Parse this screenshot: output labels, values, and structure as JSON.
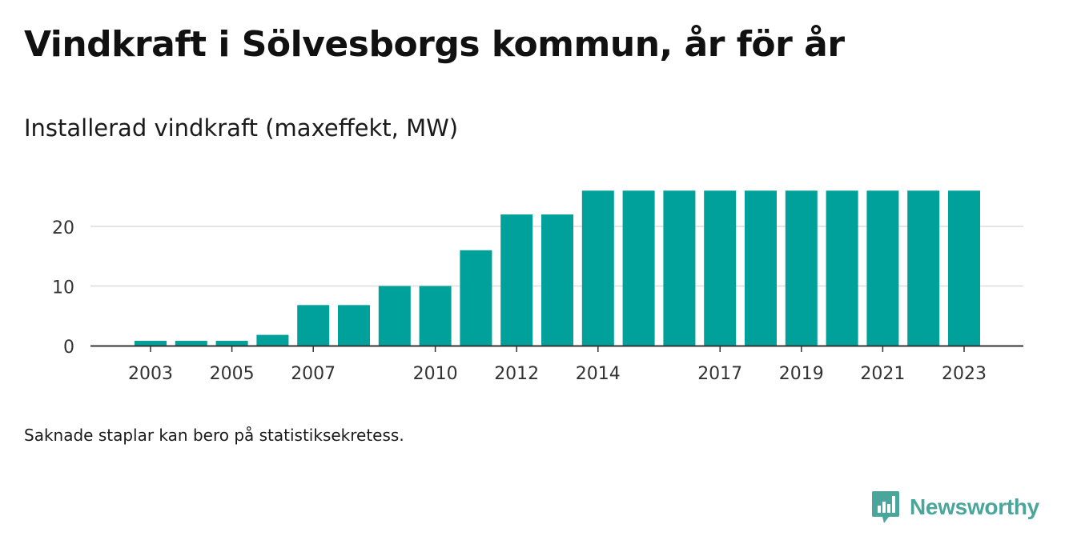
{
  "title": "Vindkraft i Sölvesborgs kommun, år för år",
  "chart_data": {
    "type": "bar",
    "title": "Vindkraft i Sölvesborgs kommun, år för år",
    "subtitle": "Installerad vindkraft (maxeffekt, MW)",
    "categories": [
      "2003",
      "2004",
      "2005",
      "2006",
      "2007",
      "2008",
      "2009",
      "2010",
      "2011",
      "2012",
      "2013",
      "2014",
      "2015",
      "2016",
      "2017",
      "2018",
      "2019",
      "2020",
      "2021",
      "2022",
      "2023"
    ],
    "values": [
      0.8,
      0.8,
      0.8,
      1.8,
      6.8,
      6.8,
      10,
      10,
      16,
      22,
      22,
      26,
      26,
      26,
      26,
      26,
      26,
      26,
      26,
      26,
      26
    ],
    "x_tick_labels": [
      "2003",
      "2005",
      "2007",
      "2010",
      "2012",
      "2014",
      "2017",
      "2019",
      "2021",
      "2023"
    ],
    "y_ticks": [
      0,
      10,
      20
    ],
    "ylim": [
      0,
      28
    ],
    "xlabel": "",
    "ylabel": "",
    "grid": true,
    "bar_color": "#00a19a"
  },
  "note": "Saknade staplar kan bero på statistiksekretess.",
  "brand": {
    "name": "Newsworthy",
    "color": "#4aa69b"
  }
}
